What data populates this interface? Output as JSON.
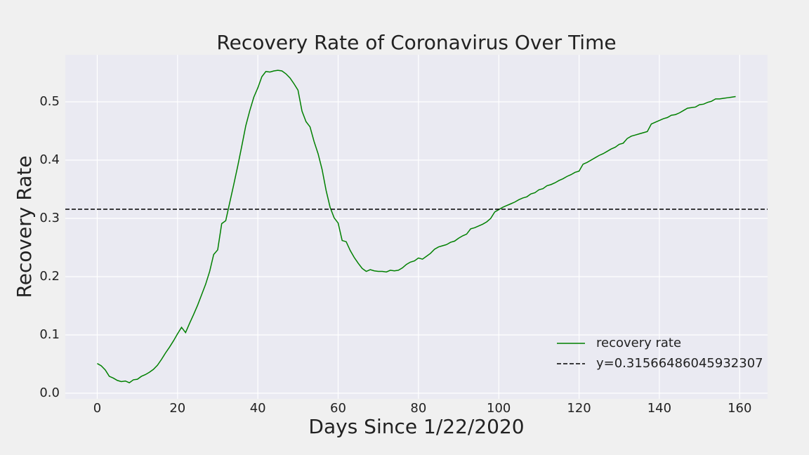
{
  "chart_data": {
    "type": "line",
    "title": "Recovery Rate of Coronavirus Over Time",
    "xlabel": "Days Since 1/22/2020",
    "ylabel": "Recovery Rate",
    "x": [
      0,
      1,
      2,
      3,
      4,
      5,
      6,
      7,
      8,
      9,
      10,
      11,
      12,
      13,
      14,
      15,
      16,
      17,
      18,
      19,
      20,
      21,
      22,
      23,
      24,
      25,
      26,
      27,
      28,
      29,
      30,
      31,
      32,
      33,
      34,
      35,
      36,
      37,
      38,
      39,
      40,
      41,
      42,
      43,
      44,
      45,
      46,
      47,
      48,
      49,
      50,
      51,
      52,
      53,
      54,
      55,
      56,
      57,
      58,
      59,
      60,
      61,
      62,
      63,
      64,
      65,
      66,
      67,
      68,
      69,
      70,
      71,
      72,
      73,
      74,
      75,
      76,
      77,
      78,
      79,
      80,
      81,
      82,
      83,
      84,
      85,
      86,
      87,
      88,
      89,
      90,
      91,
      92,
      93,
      94,
      95,
      96,
      97,
      98,
      99,
      100,
      101,
      102,
      103,
      104,
      105,
      106,
      107,
      108,
      109,
      110,
      111,
      112,
      113,
      114,
      115,
      116,
      117,
      118,
      119,
      120,
      121,
      122,
      123,
      124,
      125,
      126,
      127,
      128,
      129,
      130,
      131,
      132,
      133,
      134,
      135,
      136,
      137,
      138,
      139,
      140,
      141,
      142,
      143,
      144,
      145,
      146,
      147,
      148,
      149,
      150,
      151,
      152,
      153,
      154,
      155,
      156,
      157,
      158,
      159
    ],
    "series": [
      {
        "name": "recovery rate",
        "color": "#008000",
        "values": [
          0.051,
          0.047,
          0.04,
          0.029,
          0.026,
          0.022,
          0.02,
          0.021,
          0.018,
          0.023,
          0.024,
          0.029,
          0.032,
          0.036,
          0.041,
          0.048,
          0.058,
          0.069,
          0.079,
          0.09,
          0.102,
          0.113,
          0.104,
          0.12,
          0.135,
          0.151,
          0.169,
          0.187,
          0.209,
          0.238,
          0.246,
          0.291,
          0.296,
          0.327,
          0.358,
          0.39,
          0.424,
          0.459,
          0.485,
          0.508,
          0.524,
          0.543,
          0.552,
          0.551,
          0.553,
          0.554,
          0.553,
          0.548,
          0.541,
          0.531,
          0.52,
          0.484,
          0.466,
          0.457,
          0.432,
          0.411,
          0.384,
          0.348,
          0.319,
          0.301,
          0.292,
          0.262,
          0.26,
          0.245,
          0.233,
          0.223,
          0.214,
          0.209,
          0.212,
          0.21,
          0.209,
          0.209,
          0.208,
          0.211,
          0.21,
          0.211,
          0.215,
          0.221,
          0.225,
          0.227,
          0.232,
          0.23,
          0.235,
          0.24,
          0.247,
          0.251,
          0.253,
          0.255,
          0.259,
          0.261,
          0.266,
          0.27,
          0.273,
          0.282,
          0.284,
          0.287,
          0.29,
          0.294,
          0.3,
          0.311,
          0.315,
          0.319,
          0.322,
          0.325,
          0.328,
          0.332,
          0.335,
          0.337,
          0.342,
          0.344,
          0.349,
          0.351,
          0.356,
          0.358,
          0.361,
          0.365,
          0.368,
          0.372,
          0.375,
          0.379,
          0.381,
          0.393,
          0.396,
          0.4,
          0.404,
          0.408,
          0.411,
          0.415,
          0.419,
          0.422,
          0.427,
          0.429,
          0.437,
          0.441,
          0.443,
          0.445,
          0.447,
          0.449,
          0.462,
          0.465,
          0.468,
          0.471,
          0.473,
          0.477,
          0.478,
          0.481,
          0.485,
          0.489,
          0.49,
          0.491,
          0.495,
          0.496,
          0.499,
          0.501,
          0.505,
          0.505,
          0.506,
          0.507,
          0.508,
          0.509
        ]
      },
      {
        "name": "y=0.31566486045932307",
        "type": "hline",
        "color": "#000000",
        "dash": true,
        "value": 0.31566486045932307
      }
    ],
    "xlim": [
      -7.95,
      166.95
    ],
    "ylim": [
      -0.0096,
      0.5807
    ],
    "xticks": [
      0,
      20,
      40,
      60,
      80,
      100,
      120,
      140,
      160
    ],
    "yticks": [
      {
        "value": 0,
        "label": "0.0"
      },
      0.1,
      0.2,
      0.3,
      0.4,
      0.5
    ],
    "grid": true,
    "legend": "lower right"
  }
}
